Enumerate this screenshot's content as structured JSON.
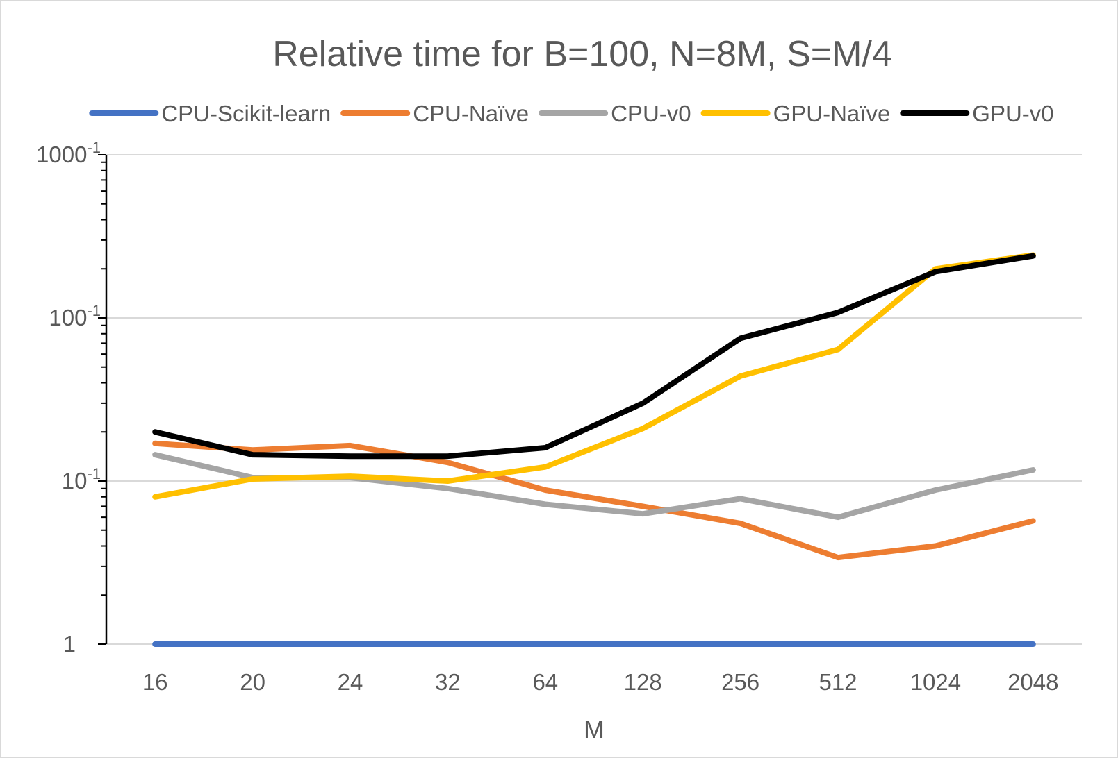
{
  "chart_data": {
    "type": "line",
    "title": "Relative time for B=100, N=8M, S=M/4",
    "xlabel": "M",
    "ylabel": "",
    "y_scale": "log10",
    "ylim": [
      1,
      1000
    ],
    "y_ticks": [
      {
        "value": 1,
        "base": "1",
        "exp": ""
      },
      {
        "value": 10,
        "base": "10",
        "exp": "-1"
      },
      {
        "value": 100,
        "base": "100",
        "exp": "-1"
      },
      {
        "value": 1000,
        "base": "1000",
        "exp": "-1"
      }
    ],
    "categories": [
      "16",
      "20",
      "24",
      "32",
      "64",
      "128",
      "256",
      "512",
      "1024",
      "2048"
    ],
    "legend_position": "top",
    "series": [
      {
        "name": "CPU-Scikit-learn",
        "color": "#4472c4",
        "values": [
          1,
          1,
          1,
          1,
          1,
          1,
          1,
          1,
          1,
          1
        ]
      },
      {
        "name": "CPU-Naïve",
        "color": "#ed7d31",
        "values": [
          17,
          15.5,
          16.5,
          13,
          8.8,
          7,
          5.5,
          3.4,
          4,
          5.7
        ]
      },
      {
        "name": "CPU-v0",
        "color": "#a5a5a5",
        "values": [
          14.5,
          10.5,
          10.5,
          9,
          7.2,
          6.3,
          7.8,
          6,
          8.8,
          11.7
        ]
      },
      {
        "name": "GPU-Naïve",
        "color": "#ffc000",
        "values": [
          8,
          10.3,
          10.7,
          10,
          12.2,
          21,
          44,
          64,
          200,
          243
        ]
      },
      {
        "name": "GPU-v0",
        "color": "#000000",
        "values": [
          20,
          14.5,
          14.2,
          14.2,
          16,
          30,
          75,
          108,
          192,
          240
        ]
      }
    ]
  }
}
